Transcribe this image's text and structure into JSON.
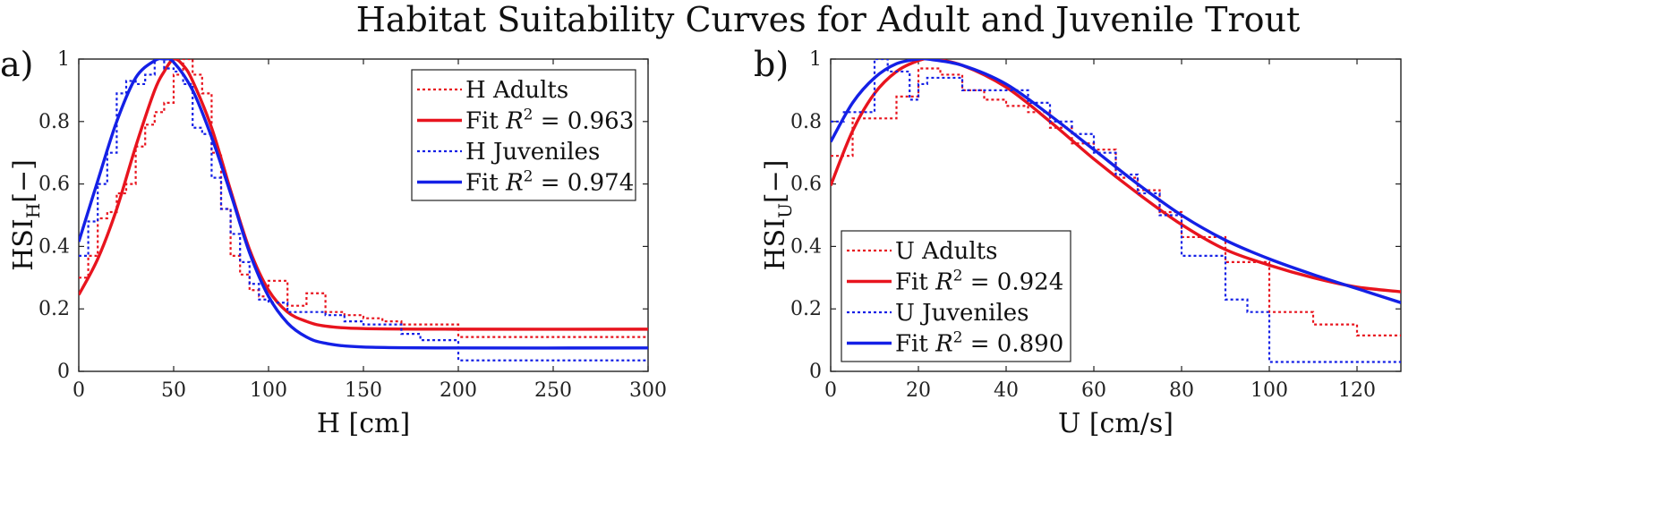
{
  "figure_title": "Habitat Suitability Curves for Adult and Juvenile Trout",
  "colors": {
    "red": "#e8141e",
    "blue": "#1420e6",
    "axis": "#222222"
  },
  "chart_data": [
    {
      "panel_label": "a)",
      "type": "line",
      "xlabel": "H [cm]",
      "ylabel_main": "HSI",
      "ylabel_sub": "H",
      "ylabel_tail": "[−]",
      "xlim": [
        0,
        300
      ],
      "ylim": [
        0,
        1
      ],
      "xticks": [
        0,
        50,
        100,
        150,
        200,
        250,
        300
      ],
      "yticks": [
        0,
        0.2,
        0.4,
        0.6,
        0.8,
        1
      ],
      "ytick_labels": [
        "0",
        "0.2",
        "0.4",
        "0.6",
        "0.8",
        "1"
      ],
      "legend_position": "top-right",
      "series": [
        {
          "name": "H Adults",
          "color": "#e8141e",
          "style": "dotted-step",
          "x": [
            0,
            5,
            10,
            15,
            20,
            25,
            30,
            35,
            40,
            45,
            50,
            55,
            60,
            65,
            70,
            75,
            80,
            85,
            90,
            95,
            100,
            110,
            120,
            130,
            140,
            150,
            160,
            170,
            200,
            300
          ],
          "y": [
            0.3,
            0.37,
            0.49,
            0.51,
            0.57,
            0.6,
            0.72,
            0.79,
            0.83,
            0.86,
            0.95,
            1.0,
            0.95,
            0.89,
            0.7,
            0.52,
            0.37,
            0.31,
            0.26,
            0.24,
            0.29,
            0.21,
            0.25,
            0.19,
            0.18,
            0.17,
            0.16,
            0.15,
            0.11,
            0.11
          ]
        },
        {
          "name": "Fit R² = 0.963",
          "fit_label": "Fit",
          "r2": "0.963",
          "color": "#e8141e",
          "style": "solid",
          "x": [
            0,
            10,
            20,
            30,
            40,
            45,
            50,
            55,
            60,
            70,
            80,
            90,
            100,
            110,
            120,
            130,
            150,
            200,
            300
          ],
          "y": [
            0.245,
            0.36,
            0.52,
            0.72,
            0.9,
            0.96,
            1.0,
            0.98,
            0.93,
            0.78,
            0.58,
            0.39,
            0.26,
            0.19,
            0.16,
            0.145,
            0.137,
            0.135,
            0.135
          ]
        },
        {
          "name": "H Juveniles",
          "color": "#1420e6",
          "style": "dotted-step",
          "x": [
            0,
            5,
            10,
            15,
            20,
            25,
            30,
            35,
            40,
            45,
            50,
            55,
            60,
            65,
            70,
            75,
            80,
            85,
            90,
            95,
            100,
            110,
            120,
            130,
            140,
            150,
            160,
            170,
            180,
            200,
            300
          ],
          "y": [
            0.37,
            0.48,
            0.6,
            0.7,
            0.89,
            0.93,
            0.92,
            0.95,
            1.0,
            0.97,
            0.96,
            0.92,
            0.78,
            0.76,
            0.62,
            0.52,
            0.44,
            0.35,
            0.28,
            0.23,
            0.22,
            0.19,
            0.19,
            0.18,
            0.16,
            0.15,
            0.15,
            0.12,
            0.1,
            0.035,
            0.035
          ]
        },
        {
          "name": "Fit R² = 0.974",
          "fit_label": "Fit",
          "r2": "0.974",
          "color": "#1420e6",
          "style": "solid",
          "x": [
            0,
            10,
            20,
            30,
            40,
            45,
            50,
            60,
            70,
            80,
            90,
            100,
            110,
            120,
            130,
            150,
            200,
            300
          ],
          "y": [
            0.415,
            0.61,
            0.8,
            0.94,
            0.995,
            1.0,
            0.99,
            0.9,
            0.75,
            0.57,
            0.38,
            0.24,
            0.155,
            0.11,
            0.09,
            0.078,
            0.075,
            0.075
          ]
        }
      ]
    },
    {
      "panel_label": "b)",
      "type": "line",
      "xlabel": "U [cm/s]",
      "ylabel_main": "HSI",
      "ylabel_sub": "U",
      "ylabel_tail": "[−]",
      "xlim": [
        0,
        130
      ],
      "ylim": [
        0,
        1
      ],
      "xticks": [
        0,
        20,
        40,
        60,
        80,
        100,
        120
      ],
      "yticks": [
        0,
        0.2,
        0.4,
        0.6,
        0.8,
        1
      ],
      "ytick_labels": [
        "0",
        "0.2",
        "0.4",
        "0.6",
        "0.8",
        "1"
      ],
      "legend_position": "bottom-left",
      "series": [
        {
          "name": "U Adults",
          "color": "#e8141e",
          "style": "dotted-step",
          "x": [
            0,
            5,
            10,
            15,
            20,
            25,
            30,
            35,
            40,
            45,
            50,
            55,
            60,
            65,
            70,
            75,
            80,
            90,
            100,
            110,
            120,
            130
          ],
          "y": [
            0.69,
            0.81,
            0.81,
            0.88,
            0.97,
            0.95,
            0.9,
            0.87,
            0.85,
            0.83,
            0.78,
            0.73,
            0.71,
            0.62,
            0.58,
            0.51,
            0.43,
            0.35,
            0.19,
            0.15,
            0.115,
            0.115
          ]
        },
        {
          "name": "Fit R² = 0.924",
          "fit_label": "Fit",
          "r2": "0.924",
          "color": "#e8141e",
          "style": "solid",
          "x": [
            0,
            5,
            10,
            15,
            20,
            23,
            30,
            40,
            50,
            60,
            70,
            80,
            90,
            100,
            110,
            120,
            130
          ],
          "y": [
            0.595,
            0.77,
            0.89,
            0.96,
            0.995,
            1.0,
            0.98,
            0.91,
            0.8,
            0.68,
            0.57,
            0.47,
            0.39,
            0.34,
            0.3,
            0.27,
            0.255
          ]
        },
        {
          "name": "U Juveniles",
          "color": "#1420e6",
          "style": "dotted-step",
          "x": [
            0,
            3,
            10,
            13,
            18,
            20,
            22,
            25,
            30,
            35,
            40,
            45,
            50,
            55,
            60,
            65,
            70,
            75,
            80,
            90,
            95,
            100,
            130
          ],
          "y": [
            0.8,
            0.83,
            1.0,
            0.96,
            0.87,
            0.92,
            0.94,
            0.94,
            0.9,
            0.9,
            0.9,
            0.86,
            0.8,
            0.76,
            0.7,
            0.63,
            0.57,
            0.5,
            0.37,
            0.23,
            0.19,
            0.03,
            0.03
          ]
        },
        {
          "name": "Fit R² = 0.890",
          "fit_label": "Fit",
          "r2": "0.890",
          "color": "#1420e6",
          "style": "solid",
          "x": [
            0,
            5,
            10,
            15,
            20,
            22,
            30,
            40,
            50,
            60,
            70,
            80,
            90,
            100,
            110,
            120,
            130
          ],
          "y": [
            0.735,
            0.86,
            0.94,
            0.985,
            1.0,
            1.0,
            0.98,
            0.92,
            0.82,
            0.71,
            0.6,
            0.5,
            0.42,
            0.36,
            0.31,
            0.265,
            0.22
          ]
        }
      ]
    }
  ]
}
